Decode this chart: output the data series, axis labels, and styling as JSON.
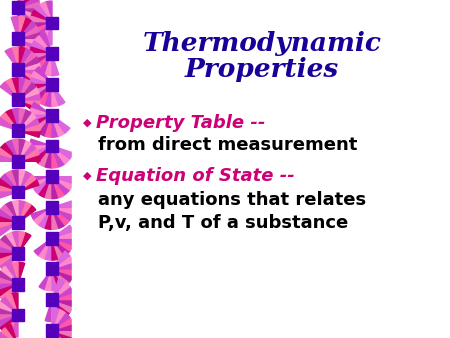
{
  "title_line1": "Thermodynamic",
  "title_line2": "Properties",
  "title_color": "#1a0099",
  "background_color": "#ffffff",
  "bullet_color": "#cc0077",
  "bullet1_label": "Property Table --",
  "bullet1_sub": "from direct measurement",
  "bullet2_label": "Equation of State --",
  "bullet2_sub1": "any equations that relates",
  "bullet2_sub2": "P,v, and T of a substance",
  "text_color_black": "#000000",
  "diamond_color": "#5500bb",
  "fan_colors": [
    "#cc0066",
    "#ff66aa",
    "#cc44cc",
    "#ff99cc",
    "#dd44aa",
    "#ee77bb",
    "#aa33bb"
  ],
  "fig_width": 4.5,
  "fig_height": 3.38,
  "dpi": 100
}
